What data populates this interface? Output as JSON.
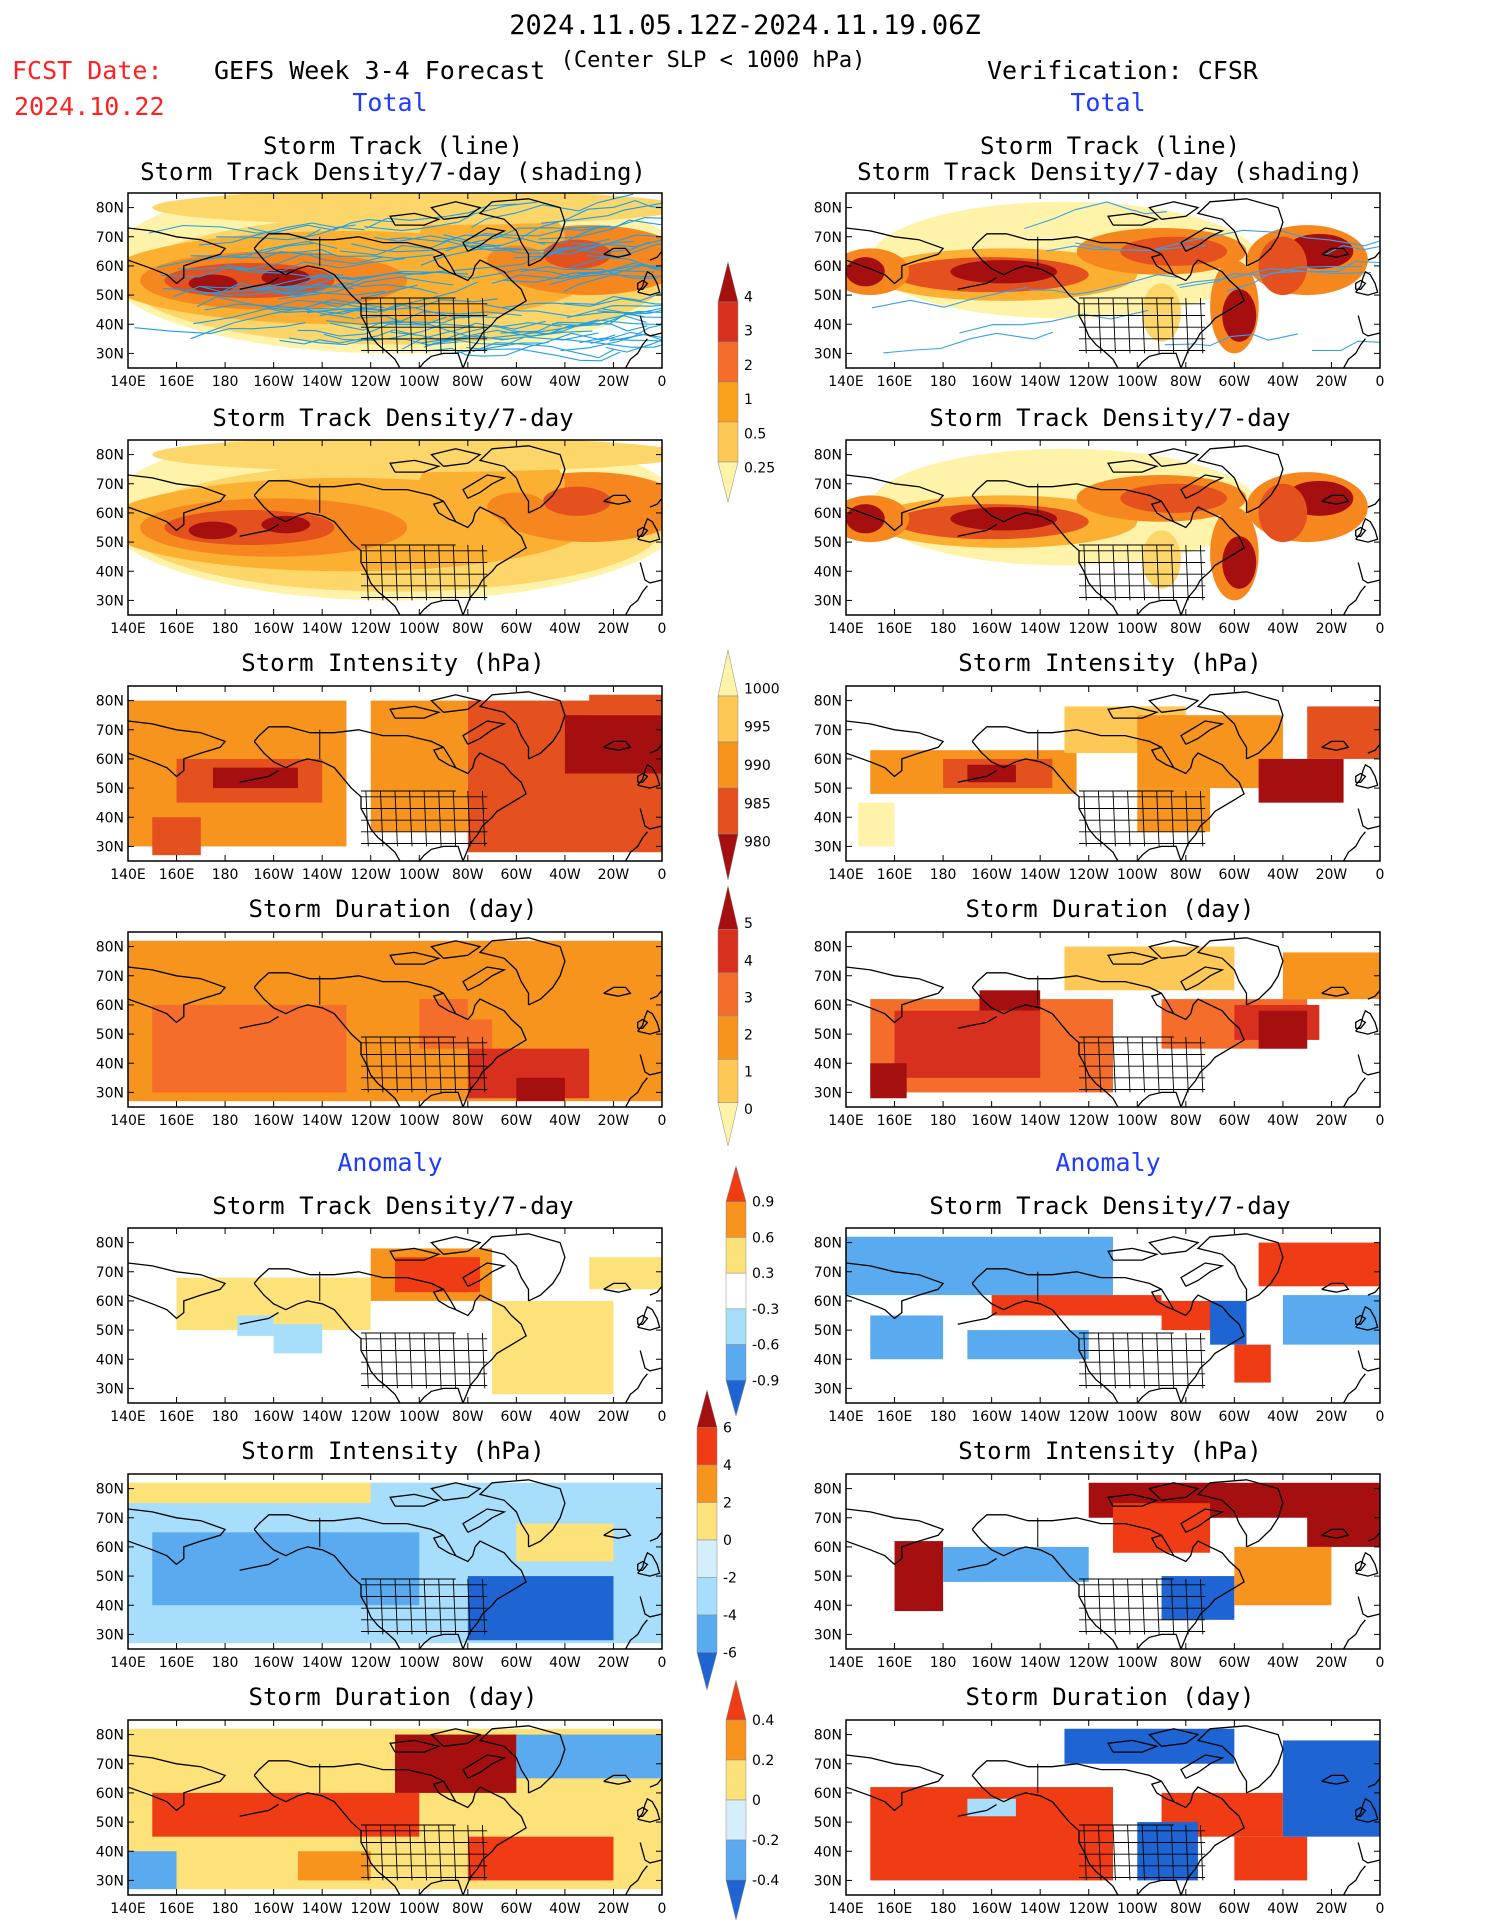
{
  "header": {
    "period": "2024.11.05.12Z-2024.11.19.06Z",
    "fcst_label": "FCST Date:",
    "fcst_date": "2024.10.22",
    "left_title": "GEFS Week 3-4 Forecast",
    "subtitle": "(Center SLP < 1000 hPa)",
    "right_title": "Verification: CFSR",
    "total_label": "Total",
    "anomaly_label": "Anomaly"
  },
  "panel_titles": {
    "track_line": "Storm Track (line)",
    "track_density_shading": "Storm Track Density/7-day (shading)",
    "track_density": "Storm Track Density/7-day",
    "intensity": "Storm Intensity (hPa)",
    "duration": "Storm Duration (day)"
  },
  "axes": {
    "lat_ticks": [
      "80N",
      "70N",
      "60N",
      "50N",
      "40N",
      "30N"
    ],
    "lon_ticks": [
      "140E",
      "160E",
      "180",
      "160W",
      "140W",
      "120W",
      "100W",
      "80W",
      "60W",
      "40W",
      "20W",
      "0"
    ]
  },
  "colorbars": {
    "density_total": {
      "labels": [
        "4",
        "3",
        "2",
        "1",
        "0.5",
        "0.25"
      ],
      "colors": [
        "#a50f0f",
        "#d7301f",
        "#f46d2a",
        "#fba21c",
        "#fdc855",
        "#fef3a8"
      ]
    },
    "intensity_total": {
      "labels": [
        "1000",
        "995",
        "990",
        "985",
        "980"
      ],
      "colors": [
        "#fef3a8",
        "#fdc855",
        "#f6941e",
        "#e4501e",
        "#a50f0f"
      ]
    },
    "duration_total": {
      "labels": [
        "5",
        "4",
        "3",
        "2",
        "1",
        "0"
      ],
      "colors": [
        "#a50f0f",
        "#d7301f",
        "#f46d2a",
        "#f6941e",
        "#fdc855",
        "#fef3a8"
      ]
    },
    "density_anom": {
      "labels": [
        "0.9",
        "0.6",
        "0.3",
        "-0.3",
        "-0.6",
        "-0.9"
      ],
      "colors": [
        "#f03c14",
        "#f6941e",
        "#fde27a",
        "#ffffff",
        "#a6defc",
        "#5aaaf0",
        "#1e64d2"
      ]
    },
    "intensity_anom": {
      "labels": [
        "6",
        "4",
        "2",
        "0",
        "-2",
        "-4",
        "-6"
      ],
      "colors": [
        "#a50f0f",
        "#f03c14",
        "#f6941e",
        "#fde27a",
        "#d4eefc",
        "#a6defc",
        "#5aaaf0",
        "#1e64d2"
      ]
    },
    "duration_anom": {
      "labels": [
        "0.4",
        "0.2",
        "0",
        "-0.2",
        "-0.4"
      ],
      "colors": [
        "#f03c14",
        "#f6941e",
        "#fde27a",
        "#d4eefc",
        "#5aaaf0",
        "#1e64d2"
      ]
    }
  },
  "chart_data": [
    {
      "type": "heatmap",
      "panel": "GEFS Total - Storm Track Density/7-day (shading) with Storm Track (line)",
      "xlim": [
        "140E",
        "0"
      ],
      "ylim": [
        "25N",
        "85N"
      ],
      "max_region": "50-60N, 170E-140W",
      "values_range": [
        0.25,
        4
      ]
    },
    {
      "type": "heatmap",
      "panel": "CFSR Total - Storm Track Density/7-day (shading) with Storm Track (line)",
      "xlim": [
        "140E",
        "0"
      ],
      "ylim": [
        "25N",
        "85N"
      ],
      "max_region": "55-60N, 160W-140W",
      "values_range": [
        0.25,
        4
      ]
    },
    {
      "type": "heatmap",
      "panel": "GEFS Total - Storm Track Density/7-day",
      "xlim": [
        "140E",
        "0"
      ],
      "ylim": [
        "25N",
        "85N"
      ],
      "values_range": [
        0.25,
        4
      ]
    },
    {
      "type": "heatmap",
      "panel": "CFSR Total - Storm Track Density/7-day",
      "xlim": [
        "140E",
        "0"
      ],
      "ylim": [
        "25N",
        "85N"
      ],
      "values_range": [
        0.25,
        4
      ]
    },
    {
      "type": "heatmap",
      "panel": "GEFS Total - Storm Intensity (hPa)",
      "xlim": [
        "140E",
        "0"
      ],
      "ylim": [
        "25N",
        "85N"
      ],
      "values_range": [
        980,
        1000
      ]
    },
    {
      "type": "heatmap",
      "panel": "CFSR Total - Storm Intensity (hPa)",
      "xlim": [
        "140E",
        "0"
      ],
      "ylim": [
        "25N",
        "85N"
      ],
      "values_range": [
        980,
        1000
      ]
    },
    {
      "type": "heatmap",
      "panel": "GEFS Total - Storm Duration (day)",
      "xlim": [
        "140E",
        "0"
      ],
      "ylim": [
        "25N",
        "85N"
      ],
      "values_range": [
        0,
        5
      ]
    },
    {
      "type": "heatmap",
      "panel": "CFSR Total - Storm Duration (day)",
      "xlim": [
        "140E",
        "0"
      ],
      "ylim": [
        "25N",
        "85N"
      ],
      "values_range": [
        0,
        5
      ]
    },
    {
      "type": "heatmap",
      "panel": "GEFS Anomaly - Storm Track Density/7-day",
      "xlim": [
        "140E",
        "0"
      ],
      "ylim": [
        "25N",
        "85N"
      ],
      "values_range": [
        -0.9,
        0.9
      ]
    },
    {
      "type": "heatmap",
      "panel": "CFSR Anomaly - Storm Track Density/7-day",
      "xlim": [
        "140E",
        "0"
      ],
      "ylim": [
        "25N",
        "85N"
      ],
      "values_range": [
        -0.9,
        0.9
      ]
    },
    {
      "type": "heatmap",
      "panel": "GEFS Anomaly - Storm Intensity (hPa)",
      "xlim": [
        "140E",
        "0"
      ],
      "ylim": [
        "25N",
        "85N"
      ],
      "values_range": [
        -6,
        6
      ]
    },
    {
      "type": "heatmap",
      "panel": "CFSR Anomaly - Storm Intensity (hPa)",
      "xlim": [
        "140E",
        "0"
      ],
      "ylim": [
        "25N",
        "85N"
      ],
      "values_range": [
        -6,
        6
      ]
    },
    {
      "type": "heatmap",
      "panel": "GEFS Anomaly - Storm Duration (day)",
      "xlim": [
        "140E",
        "0"
      ],
      "ylim": [
        "25N",
        "85N"
      ],
      "values_range": [
        -0.4,
        0.4
      ]
    },
    {
      "type": "heatmap",
      "panel": "CFSR Anomaly - Storm Duration (day)",
      "xlim": [
        "140E",
        "0"
      ],
      "ylim": [
        "25N",
        "85N"
      ],
      "values_range": [
        -0.4,
        0.4
      ]
    }
  ]
}
